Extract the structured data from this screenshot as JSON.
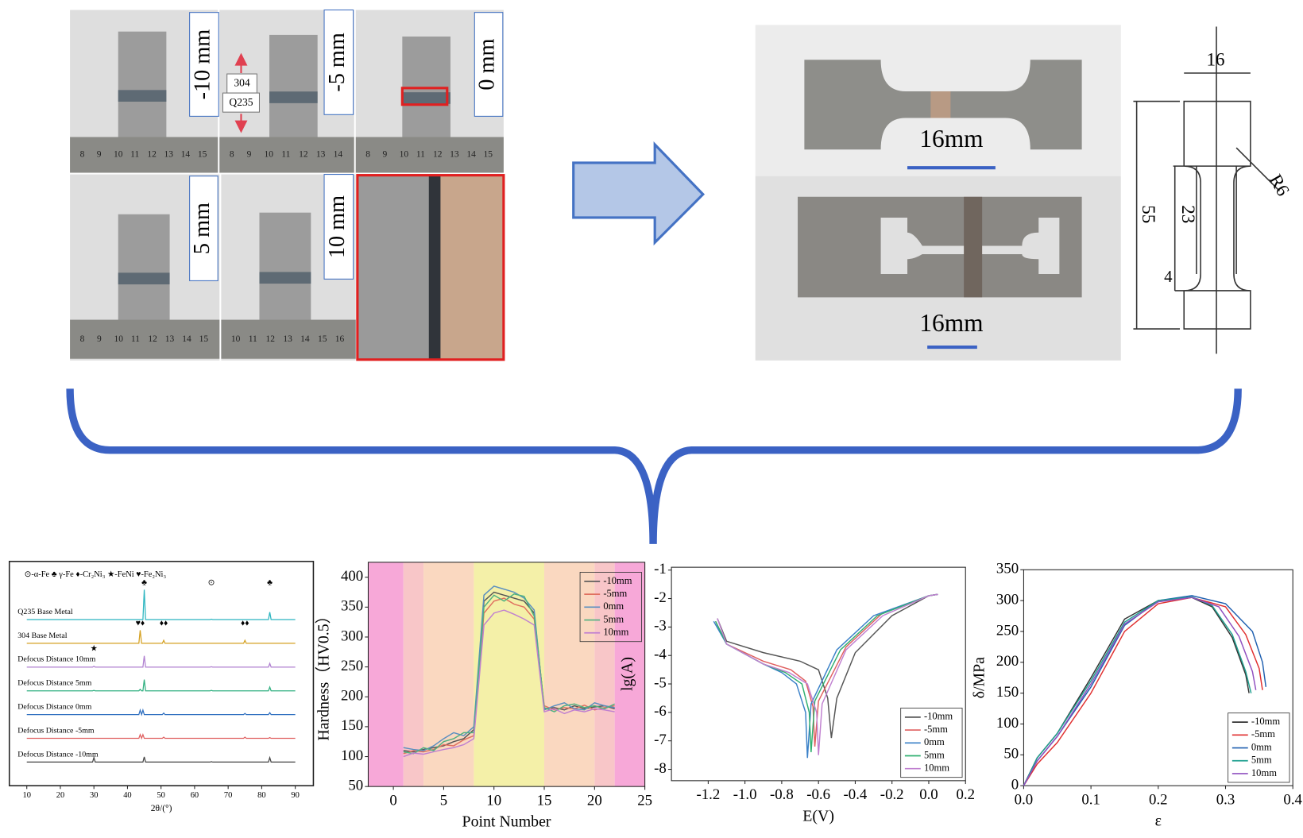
{
  "photos": {
    "labels": [
      "-10 mm",
      "-5 mm",
      "0 mm",
      "5 mm",
      "10 mm"
    ],
    "materials": [
      "304",
      "Q235"
    ],
    "rulers": [
      [
        8,
        9,
        10,
        11,
        12,
        13,
        14,
        15
      ],
      [
        8,
        9,
        10,
        11,
        12,
        13,
        14
      ],
      [
        8,
        9,
        10,
        11,
        12,
        13,
        14,
        15
      ],
      [
        8,
        9,
        10,
        11,
        12,
        13,
        14,
        15
      ],
      [
        10,
        11,
        12,
        13,
        14,
        15,
        16
      ]
    ]
  },
  "specimen": {
    "photo_labels": [
      "16mm",
      "16mm"
    ],
    "dimensions": [
      "16",
      "55",
      "23",
      "4",
      "R6"
    ]
  },
  "chart_data": [
    {
      "type": "xrd",
      "legend_text": "⊙-α-Fe  ♣ γ-Fe  ♦-Cr₂Ni₃ ★-FeNi ♥-Fe₂Ni₃",
      "xlabel": "2θ/(°)",
      "xlim": [
        4.8,
        95.4
      ],
      "xticks": [
        10,
        20,
        30,
        40,
        50,
        60,
        70,
        80,
        90
      ],
      "x": [
        10,
        29.6,
        30,
        30.4,
        43.4,
        43.8,
        44.2,
        44.6,
        45,
        45.4,
        50.4,
        50.8,
        51.2,
        64.6,
        65,
        65.4,
        74.6,
        75,
        75.4,
        82,
        82.4,
        82.8,
        90
      ],
      "series": [
        {
          "name": "Q235 Base Metal",
          "color": "#2bb5c0",
          "values": [
            0,
            0,
            0,
            0,
            0,
            0,
            0,
            0,
            80,
            0,
            0,
            0,
            0,
            0,
            1,
            0,
            0,
            0,
            0,
            0,
            20,
            0,
            0
          ],
          "annotations": [
            {
              "symbol": "♣",
              "x": 45
            },
            {
              "symbol": "⊙",
              "x": 65
            },
            {
              "symbol": "♣",
              "x": 82.4
            }
          ]
        },
        {
          "name": "304 Base Metal",
          "color": "#d4a020",
          "values": [
            0,
            0,
            0,
            0,
            0,
            35,
            0,
            0,
            0,
            0,
            0,
            8,
            0,
            0,
            0,
            0,
            0,
            8,
            0,
            0,
            0,
            0,
            0
          ],
          "annotations": [
            {
              "symbol": "♥♦",
              "x": 43.8
            },
            {
              "symbol": "♦♦",
              "x": 50.8
            },
            {
              "symbol": "♦♦",
              "x": 75
            }
          ]
        },
        {
          "name": "Defocus Distance 10mm",
          "color": "#b080d0",
          "values": [
            0,
            0,
            2,
            0,
            0,
            0,
            0,
            0,
            30,
            0,
            0,
            0,
            0,
            0,
            1,
            0,
            0,
            0,
            0,
            0,
            10,
            0,
            0
          ],
          "annotations": [
            {
              "symbol": "★",
              "x": 30
            }
          ]
        },
        {
          "name": "Defocus Distance 5mm",
          "color": "#30b080",
          "values": [
            0,
            0,
            1,
            0,
            0,
            4,
            0,
            0,
            30,
            0,
            0,
            0,
            0,
            0,
            1,
            0,
            0,
            0,
            0,
            0,
            10,
            0,
            0
          ]
        },
        {
          "name": "Defocus Distance 0mm",
          "color": "#3070c0",
          "values": [
            0,
            0,
            0,
            0,
            0,
            12,
            0,
            12,
            0,
            0,
            0,
            4,
            0,
            0,
            0,
            0,
            0,
            3,
            0,
            0,
            5,
            0,
            0
          ]
        },
        {
          "name": "Defocus Distance -5mm",
          "color": "#e06060",
          "values": [
            0,
            0,
            0,
            0,
            0,
            10,
            0,
            10,
            0,
            0,
            0,
            3,
            0,
            0,
            0,
            0,
            0,
            3,
            0,
            0,
            2,
            0,
            0
          ]
        },
        {
          "name": "Defocus Distance -10mm",
          "color": "#444444",
          "values": [
            0,
            0,
            12,
            0,
            0,
            0,
            0,
            0,
            14,
            0,
            0,
            0,
            0,
            0,
            1,
            0,
            0,
            0,
            0,
            0,
            12,
            0,
            0
          ]
        }
      ]
    },
    {
      "type": "line",
      "xlabel": "Point Number",
      "ylabel": "Hardness（HV0.5）",
      "xlim": [
        -2.5,
        25
      ],
      "ylim": [
        50,
        425
      ],
      "xticks": [
        0,
        5,
        10,
        15,
        20,
        25
      ],
      "yticks": [
        50,
        100,
        150,
        200,
        250,
        300,
        350,
        400
      ],
      "legend": "upper right",
      "bands": [
        {
          "from": -2.5,
          "to": 1,
          "color": "#f7a8d8"
        },
        {
          "from": 1,
          "to": 3,
          "color": "#f8c6c8"
        },
        {
          "from": 3,
          "to": 8,
          "color": "#fad8c0"
        },
        {
          "from": 8,
          "to": 15,
          "color": "#f4f0a8"
        },
        {
          "from": 15,
          "to": 20,
          "color": "#fad8c0"
        },
        {
          "from": 20,
          "to": 22,
          "color": "#f8c6c8"
        },
        {
          "from": 22,
          "to": 25,
          "color": "#f7a8d8"
        }
      ],
      "x": [
        1,
        2,
        3,
        4,
        5,
        6,
        7,
        8,
        9,
        10,
        11,
        12,
        13,
        14,
        15,
        16,
        17,
        18,
        19,
        20,
        21,
        22
      ],
      "series": [
        {
          "name": "-10mm",
          "color": "#555555",
          "values": [
            110,
            108,
            112,
            115,
            118,
            125,
            130,
            145,
            360,
            375,
            370,
            365,
            360,
            340,
            180,
            182,
            178,
            185,
            180,
            183,
            185,
            180
          ]
        },
        {
          "name": "-5mm",
          "color": "#e07060",
          "values": [
            105,
            110,
            108,
            112,
            120,
            118,
            128,
            135,
            340,
            360,
            365,
            355,
            350,
            330,
            185,
            178,
            182,
            180,
            186,
            178,
            182,
            185
          ]
        },
        {
          "name": "0mm",
          "color": "#5a8fc0",
          "values": [
            115,
            112,
            110,
            118,
            130,
            140,
            135,
            150,
            370,
            385,
            380,
            375,
            365,
            345,
            178,
            185,
            190,
            180,
            178,
            190,
            185,
            182
          ]
        },
        {
          "name": "5mm",
          "color": "#4fb080",
          "values": [
            108,
            105,
            115,
            110,
            125,
            130,
            140,
            140,
            350,
            370,
            360,
            372,
            368,
            335,
            182,
            175,
            185,
            188,
            182,
            185,
            180,
            188
          ]
        },
        {
          "name": "10mm",
          "color": "#c080d0",
          "values": [
            100,
            106,
            104,
            108,
            112,
            115,
            120,
            130,
            320,
            340,
            345,
            338,
            330,
            320,
            175,
            180,
            172,
            178,
            175,
            180,
            178,
            175
          ]
        }
      ]
    },
    {
      "type": "line",
      "xlabel": "E(V)",
      "ylabel": "lg(A)",
      "xlim": [
        -1.4,
        0.2
      ],
      "ylim": [
        -8.4,
        -0.9
      ],
      "xticks": [
        -1.2,
        {
          "value": -1,
          "label": "-1.0"
        },
        -0.8,
        -0.6,
        -0.4,
        -0.2,
        {
          "value": 0,
          "label": "0.0"
        },
        0.2
      ],
      "yticks": [
        -8,
        -7,
        -6,
        -5,
        -4,
        -3,
        -2,
        -1
      ],
      "legend": "lower right",
      "series": [
        {
          "name": "-10mm",
          "color": "#555555",
          "x": [
            -1.15,
            -1.1,
            -0.9,
            -0.7,
            -0.6,
            -0.55,
            -0.53,
            -0.5,
            -0.4,
            -0.2,
            0,
            0.05
          ],
          "values": [
            -2.7,
            -3.5,
            -3.9,
            -4.2,
            -4.5,
            -5.5,
            -6.9,
            -5.5,
            -3.9,
            -2.6,
            -1.9,
            -1.85
          ]
        },
        {
          "name": "-5mm",
          "color": "#e06060",
          "x": [
            -1.16,
            -1.1,
            -0.9,
            -0.75,
            -0.67,
            -0.63,
            -0.62,
            -0.6,
            -0.45,
            -0.25,
            0,
            0.05
          ],
          "values": [
            -2.8,
            -3.6,
            -4.2,
            -4.5,
            -4.9,
            -5.8,
            -7.2,
            -5.6,
            -3.7,
            -2.5,
            -1.9,
            -1.85
          ]
        },
        {
          "name": "0mm",
          "color": "#3a80c8",
          "x": [
            -1.17,
            -1.1,
            -0.9,
            -0.8,
            -0.72,
            -0.67,
            -0.66,
            -0.64,
            -0.5,
            -0.3,
            0,
            0.05
          ],
          "values": [
            -2.8,
            -3.6,
            -4.3,
            -4.6,
            -5,
            -6,
            -7.6,
            -5.7,
            -3.8,
            -2.6,
            -1.9,
            -1.85
          ]
        },
        {
          "name": "5mm",
          "color": "#30b070",
          "x": [
            -1.16,
            -1.1,
            -0.9,
            -0.78,
            -0.69,
            -0.65,
            -0.64,
            -0.62,
            -0.48,
            -0.28,
            0,
            0.05
          ],
          "values": [
            -2.8,
            -3.6,
            -4.3,
            -4.6,
            -5,
            -6,
            -7.4,
            -5.6,
            -3.8,
            -2.6,
            -1.9,
            -1.85
          ]
        },
        {
          "name": "10mm",
          "color": "#c080d0",
          "x": [
            -1.15,
            -1.1,
            -0.9,
            -0.76,
            -0.66,
            -0.61,
            -0.6,
            -0.58,
            -0.45,
            -0.25,
            0,
            0.05
          ],
          "values": [
            -2.7,
            -3.6,
            -4.3,
            -4.6,
            -5,
            -6,
            -7.5,
            -5.7,
            -3.8,
            -2.6,
            -1.9,
            -1.85
          ]
        }
      ]
    },
    {
      "type": "line",
      "xlabel": "ε",
      "ylabel": "δ/MPa",
      "xlim": [
        0,
        0.4
      ],
      "ylim": [
        0,
        350
      ],
      "xticks": [
        {
          "value": 0,
          "label": "0.0"
        },
        0.1,
        0.2,
        0.3,
        0.4
      ],
      "yticks": [
        0,
        50,
        100,
        150,
        200,
        250,
        300,
        350
      ],
      "legend": "lower right",
      "series": [
        {
          "name": "-10mm",
          "color": "#333333",
          "x": [
            0,
            0.02,
            0.05,
            0.1,
            0.15,
            0.2,
            0.25,
            0.28,
            0.31,
            0.33,
            0.335
          ],
          "values": [
            0,
            45,
            85,
            175,
            270,
            300,
            305,
            290,
            240,
            180,
            150
          ]
        },
        {
          "name": "-5mm",
          "color": "#e03030",
          "x": [
            0,
            0.02,
            0.05,
            0.1,
            0.15,
            0.2,
            0.25,
            0.3,
            0.33,
            0.35,
            0.355
          ],
          "values": [
            0,
            35,
            70,
            150,
            250,
            295,
            305,
            290,
            245,
            190,
            155
          ]
        },
        {
          "name": "0mm",
          "color": "#2060b0",
          "x": [
            0,
            0.02,
            0.05,
            0.1,
            0.15,
            0.2,
            0.25,
            0.3,
            0.34,
            0.355,
            0.36
          ],
          "values": [
            0,
            40,
            80,
            160,
            260,
            300,
            308,
            295,
            250,
            200,
            160
          ]
        },
        {
          "name": "5mm",
          "color": "#20a090",
          "x": [
            0,
            0.02,
            0.05,
            0.1,
            0.15,
            0.2,
            0.25,
            0.28,
            0.31,
            0.33,
            0.338
          ],
          "values": [
            0,
            45,
            85,
            170,
            265,
            300,
            306,
            292,
            245,
            185,
            150
          ]
        },
        {
          "name": "10mm",
          "color": "#9050c0",
          "x": [
            0,
            0.02,
            0.05,
            0.1,
            0.15,
            0.2,
            0.25,
            0.29,
            0.32,
            0.34,
            0.345
          ],
          "values": [
            0,
            40,
            80,
            165,
            262,
            298,
            305,
            290,
            242,
            185,
            155
          ]
        }
      ]
    }
  ]
}
